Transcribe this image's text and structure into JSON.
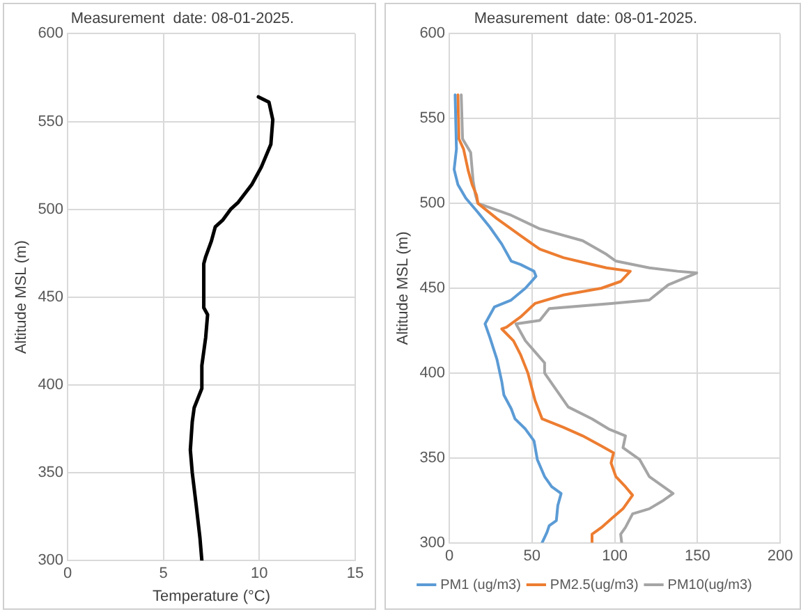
{
  "chart_data": [
    {
      "type": "line",
      "title": "Measurement  date: 08-01-2025.",
      "xlabel": "Temperature (°C)",
      "ylabel": "Altitude MSL (m)",
      "xlim": [
        0,
        15
      ],
      "xticks": [
        0,
        5,
        10,
        15
      ],
      "ylim": [
        300,
        600
      ],
      "yticks": [
        300,
        350,
        400,
        450,
        500,
        550,
        600
      ],
      "grid": true,
      "legend": false,
      "marker": "none",
      "line_style": "solid",
      "series": [
        {
          "color": "#000000",
          "x": [
            9.95,
            10.5,
            10.7,
            10.6,
            10.1,
            9.6,
            8.9,
            8.5,
            8.1,
            7.7,
            7.5,
            7.2,
            7.1,
            7.1,
            7.3,
            7.2,
            7.0,
            7.0,
            6.6,
            6.5,
            6.4,
            6.5,
            6.7,
            6.9,
            7.0
          ],
          "values": [
            564,
            561,
            551,
            537,
            524,
            514,
            504,
            500,
            494,
            490,
            482,
            473,
            469,
            444,
            440,
            427,
            411,
            398,
            387,
            379,
            363,
            350,
            332,
            313,
            300
          ]
        }
      ]
    },
    {
      "type": "line",
      "title": "Measurement  date: 08-01-2025.",
      "ylabel": "Altitude MSL (m)",
      "xlim": [
        0,
        200
      ],
      "xticks": [
        0,
        50,
        100,
        150,
        200
      ],
      "ylim": [
        300,
        600
      ],
      "yticks": [
        300,
        350,
        400,
        450,
        500,
        550,
        600
      ],
      "grid": true,
      "legend": "bottom",
      "marker": "none",
      "line_style": "solid",
      "series": [
        {
          "name": "PM1 (ug/m3)",
          "color": "#5b9bd5",
          "x": [
            3.5,
            4.3,
            2.9,
            5.2,
            10,
            17,
            24.5,
            31.7,
            37.4,
            43,
            51.2,
            52.4,
            46,
            37.4,
            27.3,
            21.6,
            24.5,
            28.8,
            31.7,
            33,
            37.4,
            39.7,
            46,
            51.2,
            53.2,
            57.6,
            61.9,
            67.6,
            65.6,
            64.7,
            60.4,
            59,
            56.1
          ],
          "values": [
            564,
            532,
            520,
            511,
            503,
            495,
            486,
            476,
            466,
            464,
            460,
            457,
            450,
            443,
            439,
            429,
            421,
            408,
            395,
            387,
            379,
            373,
            367,
            360,
            349,
            339,
            333,
            329,
            322,
            313,
            310,
            306,
            300
          ]
        },
        {
          "name": "PM2.5(ug/m3)",
          "color": "#ed7d31",
          "x": [
            5.2,
            5.8,
            8.6,
            11.5,
            13.8,
            16.4,
            17.3,
            28.8,
            43,
            54.7,
            69,
            82,
            95,
            109.4,
            103.6,
            92,
            69,
            51.8,
            43,
            34.5,
            31.7,
            38.8,
            43,
            47.5,
            51.8,
            56.1,
            69,
            80.6,
            92,
            99.3,
            97.8,
            100.7,
            106.5,
            110.8,
            105,
            97.8,
            92,
            86.3,
            86.3
          ],
          "values": [
            564,
            538,
            532,
            519,
            511,
            505,
            500,
            491,
            481,
            473,
            468,
            465,
            462,
            460,
            454,
            450,
            446,
            441,
            433,
            427,
            426,
            419,
            411,
            400,
            384,
            373,
            368,
            363,
            357,
            353,
            347,
            339,
            333,
            328,
            320,
            314,
            309,
            305,
            300
          ]
        },
        {
          "name": "PM10(ug/m3)",
          "color": "#a5a5a5",
          "x": [
            7.2,
            8,
            12.9,
            14.4,
            15.8,
            17.3,
            37.4,
            54.7,
            80.6,
            95,
            100.7,
            120.9,
            138,
            149.6,
            132.4,
            120.9,
            97.8,
            60.4,
            54.7,
            40.3,
            46,
            57.6,
            57.6,
            63.3,
            71.9,
            86.3,
            96.4,
            106.5,
            105,
            115.1,
            120.9,
            129.5,
            135.3,
            129.5,
            120.9,
            110.8,
            106.5,
            103.6,
            104.2
          ],
          "values": [
            564,
            538,
            530,
            513,
            505,
            500,
            493,
            485,
            478,
            470,
            466,
            462,
            460,
            459,
            452,
            443,
            441,
            438,
            431,
            429,
            419,
            406,
            400,
            392,
            380,
            373,
            367,
            363,
            356,
            349,
            339,
            333,
            329,
            325,
            320,
            317,
            309,
            305,
            300
          ]
        }
      ]
    }
  ]
}
